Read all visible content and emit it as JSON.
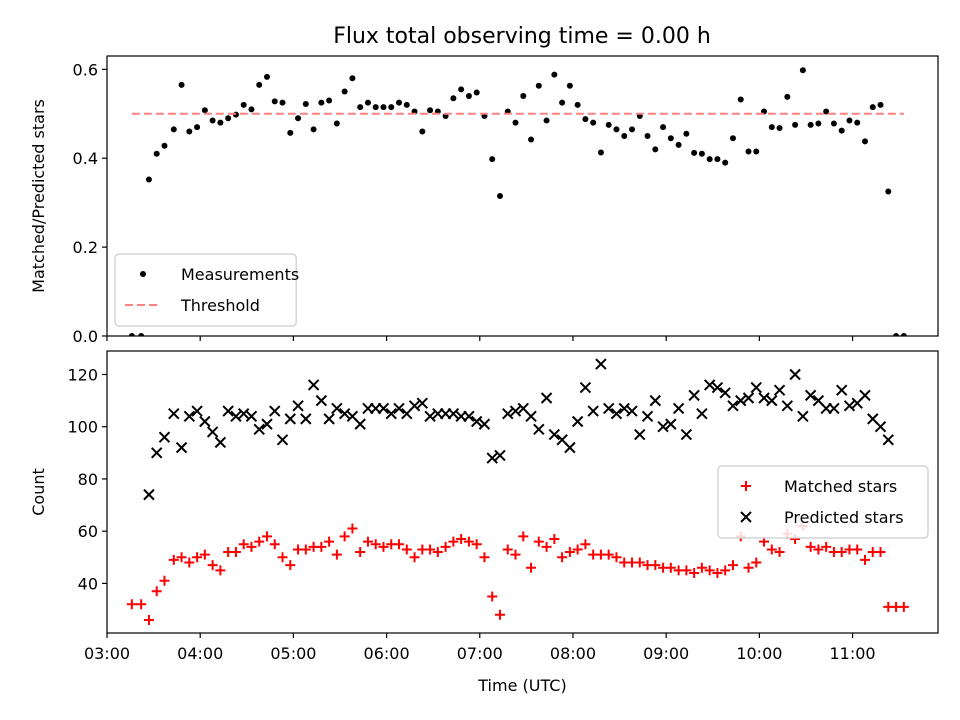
{
  "title": "Flux total observing time = 0.00 h",
  "chart_data": [
    {
      "type": "scatter",
      "panel": "top",
      "ylabel": "Matched/Predicted stars",
      "ylim": [
        0,
        0.63
      ],
      "yticks": [
        0.0,
        0.2,
        0.4,
        0.6
      ],
      "ytick_labels": [
        "0.0",
        "0.2",
        "0.4",
        "0.6"
      ],
      "xlim": [
        "03:00",
        "11:55"
      ],
      "grid": false,
      "legend_position": "lower-left",
      "series": [
        {
          "name": "Measurements",
          "style": "dot",
          "color": "#000000",
          "x": [
            "03:16",
            "03:22",
            "03:27",
            "03:32",
            "03:37",
            "03:43",
            "03:48",
            "03:53",
            "03:58",
            "04:03",
            "04:08",
            "04:13",
            "04:18",
            "04:23",
            "04:28",
            "04:33",
            "04:38",
            "04:43",
            "04:48",
            "04:53",
            "04:58",
            "05:03",
            "05:08",
            "05:13",
            "05:18",
            "05:23",
            "05:28",
            "05:33",
            "05:38",
            "05:43",
            "05:48",
            "05:53",
            "05:58",
            "06:03",
            "06:08",
            "06:13",
            "06:18",
            "06:23",
            "06:28",
            "06:33",
            "06:38",
            "06:43",
            "06:48",
            "06:53",
            "06:58",
            "07:03",
            "07:08",
            "07:13",
            "07:18",
            "07:23",
            "07:28",
            "07:33",
            "07:38",
            "07:43",
            "07:48",
            "07:53",
            "07:58",
            "08:03",
            "08:08",
            "08:13",
            "08:18",
            "08:23",
            "08:28",
            "08:33",
            "08:38",
            "08:43",
            "08:48",
            "08:53",
            "08:58",
            "09:03",
            "09:08",
            "09:13",
            "09:18",
            "09:23",
            "09:28",
            "09:33",
            "09:38",
            "09:43",
            "09:48",
            "09:53",
            "09:58",
            "10:03",
            "10:08",
            "10:13",
            "10:18",
            "10:23",
            "10:28",
            "10:33",
            "10:38",
            "10:43",
            "10:48",
            "10:53",
            "10:58",
            "11:03",
            "11:08",
            "11:13",
            "11:18",
            "11:23",
            "11:28",
            "11:33"
          ],
          "y": [
            0.0,
            0.0,
            0.352,
            0.41,
            0.428,
            0.465,
            0.565,
            0.46,
            0.47,
            0.508,
            0.485,
            0.48,
            0.49,
            0.498,
            0.52,
            0.51,
            0.565,
            0.583,
            0.528,
            0.525,
            0.457,
            0.49,
            0.522,
            0.465,
            0.525,
            0.53,
            0.478,
            0.55,
            0.58,
            0.515,
            0.525,
            0.515,
            0.515,
            0.515,
            0.525,
            0.52,
            0.505,
            0.46,
            0.508,
            0.505,
            0.495,
            0.535,
            0.555,
            0.54,
            0.548,
            0.495,
            0.398,
            0.315,
            0.505,
            0.48,
            0.54,
            0.442,
            0.563,
            0.485,
            0.588,
            0.525,
            0.563,
            0.52,
            0.488,
            0.48,
            0.413,
            0.475,
            0.465,
            0.45,
            0.465,
            0.495,
            0.45,
            0.42,
            0.47,
            0.445,
            0.43,
            0.455,
            0.412,
            0.41,
            0.398,
            0.398,
            0.39,
            0.445,
            0.532,
            0.415,
            0.415,
            0.505,
            0.47,
            0.468,
            0.538,
            0.475,
            0.598,
            0.475,
            0.478,
            0.505,
            0.478,
            0.462,
            0.485,
            0.48,
            0.438,
            0.515,
            0.52,
            0.325,
            0.0,
            0.0
          ]
        },
        {
          "name": "Threshold",
          "style": "dashed-line",
          "color": "#ff8080",
          "x": [
            "03:16",
            "11:33"
          ],
          "y": [
            0.5,
            0.5
          ]
        }
      ]
    },
    {
      "type": "scatter",
      "panel": "bottom",
      "ylabel": "Count",
      "xlabel": "Time (UTC)",
      "ylim": [
        21,
        129
      ],
      "yticks": [
        40,
        60,
        80,
        100,
        120
      ],
      "ytick_labels": [
        "40",
        "60",
        "80",
        "100",
        "120"
      ],
      "xlim": [
        "03:00",
        "11:55"
      ],
      "xticks": [
        "03:00",
        "04:00",
        "05:00",
        "06:00",
        "07:00",
        "08:00",
        "09:00",
        "10:00",
        "11:00"
      ],
      "xtick_labels": [
        "03:00",
        "04:00",
        "05:00",
        "06:00",
        "07:00",
        "08:00",
        "09:00",
        "10:00",
        "11:00"
      ],
      "grid": false,
      "legend_position": "center-right",
      "series": [
        {
          "name": "Matched stars",
          "marker": "plus",
          "color": "#ff0000",
          "x": [
            "03:16",
            "03:22",
            "03:27",
            "03:32",
            "03:37",
            "03:43",
            "03:48",
            "03:53",
            "03:58",
            "04:03",
            "04:08",
            "04:13",
            "04:18",
            "04:23",
            "04:28",
            "04:33",
            "04:38",
            "04:43",
            "04:48",
            "04:53",
            "04:58",
            "05:03",
            "05:08",
            "05:13",
            "05:18",
            "05:23",
            "05:28",
            "05:33",
            "05:38",
            "05:43",
            "05:48",
            "05:53",
            "05:58",
            "06:03",
            "06:08",
            "06:13",
            "06:18",
            "06:23",
            "06:28",
            "06:33",
            "06:38",
            "06:43",
            "06:48",
            "06:53",
            "06:58",
            "07:03",
            "07:08",
            "07:13",
            "07:18",
            "07:23",
            "07:28",
            "07:33",
            "07:38",
            "07:43",
            "07:48",
            "07:53",
            "07:58",
            "08:03",
            "08:08",
            "08:13",
            "08:18",
            "08:23",
            "08:28",
            "08:33",
            "08:38",
            "08:43",
            "08:48",
            "08:53",
            "08:58",
            "09:03",
            "09:08",
            "09:13",
            "09:18",
            "09:23",
            "09:28",
            "09:33",
            "09:38",
            "09:43",
            "09:48",
            "09:53",
            "09:58",
            "10:03",
            "10:08",
            "10:13",
            "10:18",
            "10:23",
            "10:28",
            "10:33",
            "10:38",
            "10:43",
            "10:48",
            "10:53",
            "10:58",
            "11:03",
            "11:08",
            "11:13",
            "11:18",
            "11:23",
            "11:28",
            "11:33"
          ],
          "y": [
            32,
            32,
            26,
            37,
            41,
            49,
            50,
            48,
            50,
            51,
            47,
            45,
            52,
            52,
            55,
            54,
            56,
            58,
            55,
            50,
            47,
            53,
            53,
            54,
            54,
            56,
            51,
            58,
            61,
            52,
            56,
            55,
            54,
            55,
            55,
            53,
            50,
            53,
            53,
            52,
            54,
            56,
            57,
            56,
            55,
            50,
            35,
            28,
            53,
            51,
            58,
            46,
            56,
            54,
            57,
            50,
            52,
            53,
            55,
            51,
            51,
            51,
            50,
            48,
            48,
            48,
            47,
            47,
            46,
            46,
            45,
            45,
            44,
            46,
            45,
            44,
            45,
            47,
            58,
            46,
            48,
            56,
            53,
            52,
            59,
            57,
            62,
            54,
            53,
            54,
            52,
            52,
            53,
            53,
            49,
            52,
            52,
            31,
            31,
            31
          ]
        },
        {
          "name": "Predicted stars",
          "marker": "x",
          "color": "#000000",
          "x": [
            "03:27",
            "03:32",
            "03:37",
            "03:43",
            "03:48",
            "03:53",
            "03:58",
            "04:03",
            "04:08",
            "04:13",
            "04:18",
            "04:23",
            "04:28",
            "04:33",
            "04:38",
            "04:43",
            "04:48",
            "04:53",
            "04:58",
            "05:03",
            "05:08",
            "05:13",
            "05:18",
            "05:23",
            "05:28",
            "05:33",
            "05:38",
            "05:43",
            "05:48",
            "05:53",
            "05:58",
            "06:03",
            "06:08",
            "06:13",
            "06:18",
            "06:23",
            "06:28",
            "06:33",
            "06:38",
            "06:43",
            "06:48",
            "06:53",
            "06:58",
            "07:03",
            "07:08",
            "07:13",
            "07:18",
            "07:23",
            "07:28",
            "07:33",
            "07:38",
            "07:43",
            "07:48",
            "07:53",
            "07:58",
            "08:03",
            "08:08",
            "08:13",
            "08:18",
            "08:23",
            "08:28",
            "08:33",
            "08:38",
            "08:43",
            "08:48",
            "08:53",
            "08:58",
            "09:03",
            "09:08",
            "09:13",
            "09:18",
            "09:23",
            "09:28",
            "09:33",
            "09:38",
            "09:43",
            "09:48",
            "09:53",
            "09:58",
            "10:03",
            "10:08",
            "10:13",
            "10:18",
            "10:23",
            "10:28",
            "10:33",
            "10:38",
            "10:43",
            "10:48",
            "10:53",
            "10:58",
            "11:03",
            "11:08",
            "11:13",
            "11:18",
            "11:23"
          ],
          "y": [
            74,
            90,
            96,
            105,
            92,
            104,
            106,
            102,
            98,
            94,
            106,
            104,
            105,
            104,
            99,
            101,
            106,
            95,
            103,
            108,
            103,
            116,
            110,
            103,
            107,
            105,
            104,
            101,
            107,
            107,
            107,
            105,
            107,
            105,
            108,
            109,
            104,
            105,
            105,
            105,
            104,
            104,
            102,
            101,
            88,
            89,
            105,
            106,
            107,
            104,
            99,
            111,
            97,
            95,
            92,
            102,
            115,
            106,
            124,
            107,
            105,
            107,
            106,
            97,
            104,
            110,
            100,
            101,
            107,
            97,
            112,
            105,
            116,
            115,
            113,
            108,
            110,
            111,
            115,
            111,
            110,
            114,
            108,
            120,
            104,
            112,
            110,
            107,
            107,
            114,
            108,
            109,
            112,
            103,
            100,
            95
          ]
        }
      ]
    }
  ]
}
